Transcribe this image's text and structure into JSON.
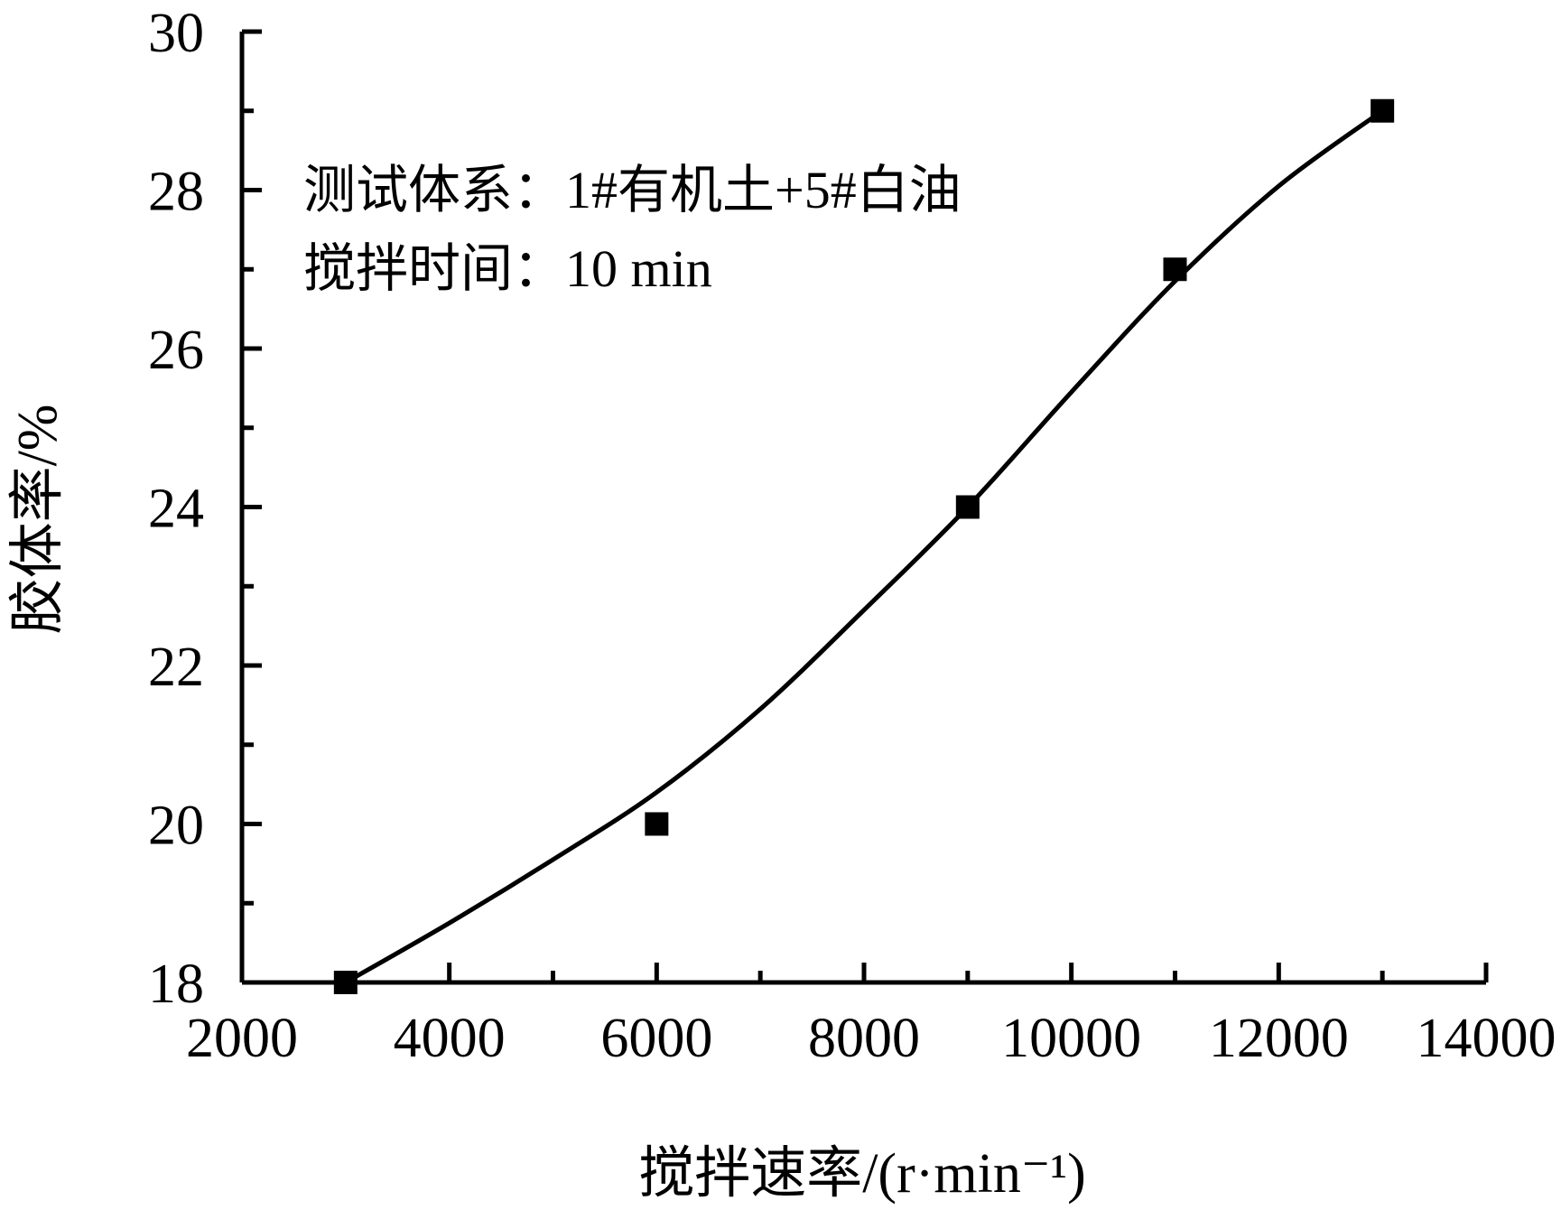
{
  "chart_data": {
    "type": "scatter",
    "title": "",
    "xlabel": "搅拌速率/(r·min⁻¹)",
    "ylabel": "胶体率/%",
    "xlim": [
      2000,
      14000
    ],
    "ylim": [
      18,
      30
    ],
    "x_ticks": [
      2000,
      4000,
      6000,
      8000,
      10000,
      12000,
      14000
    ],
    "x_tick_labels": [
      "2000",
      "4000",
      "6000",
      "8000",
      "10000",
      "12000",
      "14000"
    ],
    "y_ticks": [
      18,
      20,
      22,
      24,
      26,
      28,
      30
    ],
    "y_tick_labels": [
      "18",
      "20",
      "22",
      "24",
      "26",
      "28",
      "30"
    ],
    "grid": false,
    "legend": "none",
    "series": [
      {
        "marker": "square",
        "x": [
          3000,
          6000,
          9000,
          11000,
          13000
        ],
        "y": [
          18,
          20,
          24,
          27,
          29
        ]
      }
    ],
    "fit_curve": {
      "x": [
        3000,
        4000,
        5000,
        6000,
        7000,
        8000,
        9000,
        10000,
        11000,
        12000,
        13000
      ],
      "y": [
        18,
        18.75,
        19.55,
        20.4,
        21.45,
        22.7,
        24,
        25.45,
        26.85,
        28.05,
        29
      ]
    },
    "annotations": [
      "测试体系：1#有机土+5#白油",
      "搅拌时间：10 min"
    ],
    "colors": {
      "marker": "#000000",
      "line": "#000000",
      "axis": "#000000"
    }
  }
}
